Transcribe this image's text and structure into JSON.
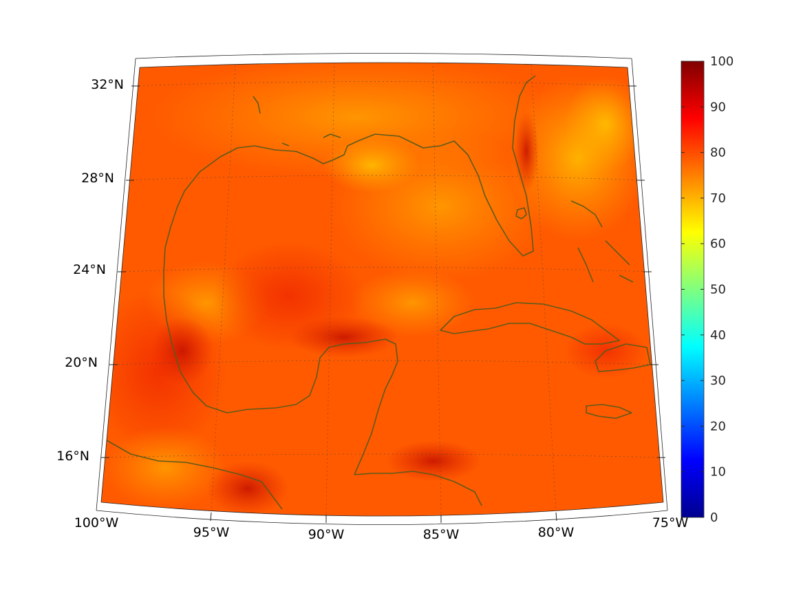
{
  "map": {
    "projection": "conic",
    "lon_range": [
      -100,
      -75
    ],
    "lat_range": [
      14,
      33
    ],
    "lon_labels": [
      "100°W",
      "95°W",
      "90°W",
      "85°W",
      "80°W",
      "75°W"
    ],
    "lat_labels": [
      "16°N",
      "20°N",
      "24°N",
      "28°N",
      "32°N"
    ],
    "coastline_color": "#5c5a1c",
    "grid": "dotted",
    "field_dominant_color": "#ff5500"
  },
  "colorbar": {
    "min": 0,
    "max": 100,
    "ticks": [
      "0",
      "10",
      "20",
      "30",
      "40",
      "50",
      "60",
      "70",
      "80",
      "90",
      "100"
    ],
    "colormap": "jet",
    "orientation": "vertical",
    "placement": "right"
  }
}
